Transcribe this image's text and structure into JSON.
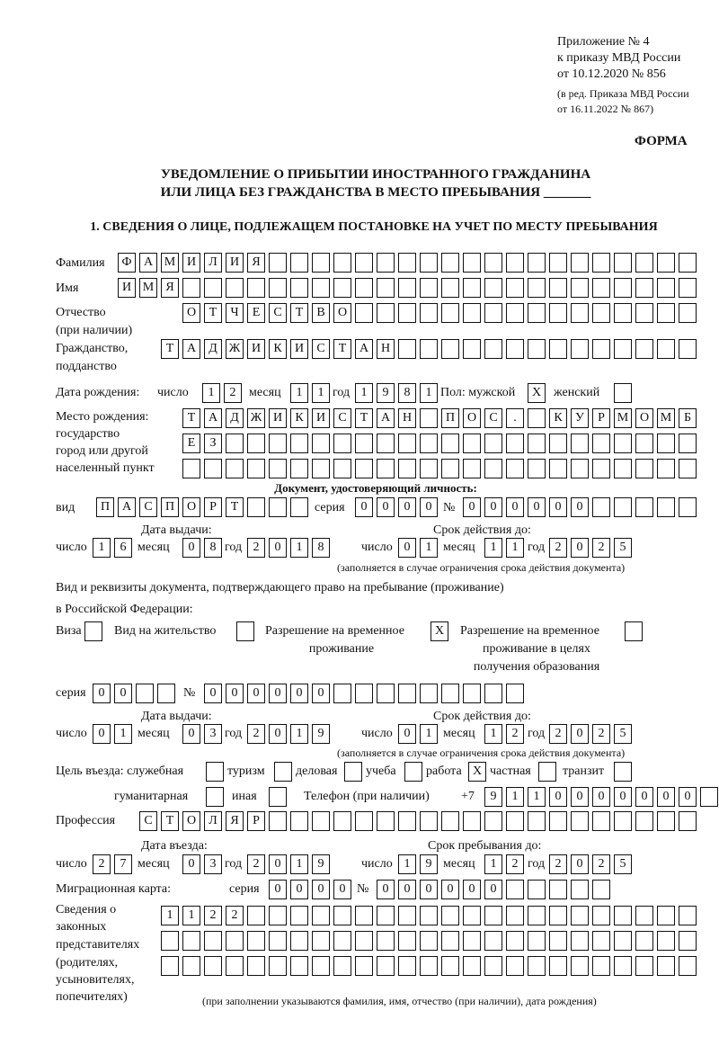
{
  "header": {
    "line1": "Приложение № 4",
    "line2": "к приказу МВД России",
    "line3": "от 10.12.2020 № 856",
    "line4": "(в ред. Приказа МВД России",
    "line5": "от 16.11.2022 № 867)",
    "form_label": "ФОРМА"
  },
  "title": {
    "line1": "УВЕДОМЛЕНИЕ О ПРИБЫТИИ ИНОСТРАННОГО ГРАЖДАНИНА",
    "line2": "ИЛИ ЛИЦА БЕЗ ГРАЖДАНСТВА В МЕСТО ПРЕБЫВАНИЯ _______"
  },
  "section1": {
    "heading": "1. СВЕДЕНИЯ О ЛИЦЕ, ПОДЛЕЖАЩЕМ ПОСТАНОВКЕ НА УЧЕТ ПО МЕСТУ ПРЕБЫВАНИЯ",
    "surname": {
      "label": "Фамилия",
      "cells": [
        "Ф",
        "А",
        "М",
        "И",
        "Л",
        "И",
        "Я",
        "",
        "",
        "",
        "",
        "",
        "",
        "",
        "",
        "",
        "",
        "",
        "",
        "",
        "",
        "",
        "",
        "",
        "",
        "",
        ""
      ]
    },
    "name": {
      "label": "Имя",
      "cells": [
        "И",
        "М",
        "Я",
        "",
        "",
        "",
        "",
        "",
        "",
        "",
        "",
        "",
        "",
        "",
        "",
        "",
        "",
        "",
        "",
        "",
        "",
        "",
        "",
        "",
        "",
        "",
        ""
      ]
    },
    "patronymic": {
      "label": "Отчество",
      "label2": "(при наличии)",
      "cells": [
        "О",
        "Т",
        "Ч",
        "Е",
        "С",
        "Т",
        "В",
        "О",
        "",
        "",
        "",
        "",
        "",
        "",
        "",
        "",
        "",
        "",
        "",
        "",
        "",
        "",
        "",
        ""
      ]
    },
    "citizenship": {
      "label": "Гражданство,",
      "label2": "подданство",
      "cells": [
        "Т",
        "А",
        "Д",
        "Ж",
        "И",
        "К",
        "И",
        "С",
        "Т",
        "А",
        "Н",
        "",
        "",
        "",
        "",
        "",
        "",
        "",
        "",
        "",
        "",
        "",
        "",
        "",
        ""
      ]
    },
    "birth_date": {
      "label": "Дата рождения:",
      "day_label": "число",
      "day": [
        "1",
        "2"
      ],
      "month_label": "месяц",
      "month": [
        "1",
        "1"
      ],
      "year_label": "год",
      "year": [
        "1",
        "9",
        "8",
        "1"
      ],
      "sex_label": "Пол: мужской",
      "male": [
        "X"
      ],
      "female_label": "женский",
      "female": [
        ""
      ]
    },
    "birth_place": {
      "label1": "Место рождения:",
      "label2": "государство",
      "label3": "город или другой",
      "label4": "населенный пункт",
      "row1": [
        "Т",
        "А",
        "Д",
        "Ж",
        "И",
        "К",
        "И",
        "С",
        "Т",
        "А",
        "Н",
        "",
        "П",
        "О",
        "С",
        ".",
        "",
        "К",
        "У",
        "Р",
        "М",
        "О",
        "М",
        "Б"
      ],
      "row2": [
        "Е",
        "З",
        "",
        "",
        "",
        "",
        "",
        "",
        "",
        "",
        "",
        "",
        "",
        "",
        "",
        "",
        "",
        "",
        "",
        "",
        "",
        "",
        "",
        ""
      ],
      "row3": [
        "",
        "",
        "",
        "",
        "",
        "",
        "",
        "",
        "",
        "",
        "",
        "",
        "",
        "",
        "",
        "",
        "",
        "",
        "",
        "",
        "",
        "",
        "",
        ""
      ]
    },
    "id_doc": {
      "heading": "Документ, удостоверяющий личность:",
      "kind_label": "вид",
      "kind": [
        "П",
        "А",
        "С",
        "П",
        "О",
        "Р",
        "Т",
        "",
        "",
        ""
      ],
      "series_label": "серия",
      "series": [
        "0",
        "0",
        "0",
        "0"
      ],
      "number_label": "№",
      "number": [
        "0",
        "0",
        "0",
        "0",
        "0",
        "0",
        "",
        "",
        "",
        "",
        ""
      ],
      "issue_label": "Дата выдачи:",
      "expiry_label": "Срок действия до:",
      "day_label": "число",
      "month_label": "месяц",
      "year_label": "год",
      "issue_day": [
        "1",
        "6"
      ],
      "issue_month": [
        "0",
        "8"
      ],
      "issue_year": [
        "2",
        "0",
        "1",
        "8"
      ],
      "exp_day": [
        "0",
        "1"
      ],
      "exp_month": [
        "1",
        "1"
      ],
      "exp_year": [
        "2",
        "0",
        "2",
        "5"
      ],
      "note": "(заполняется в случае ограничения срока действия документа)"
    },
    "stay_doc": {
      "intro1": "Вид и реквизиты документа, подтверждающего право на пребывание (проживание)",
      "intro2": "в Российской Федерации:",
      "visa_label": "Виза",
      "visa": [
        ""
      ],
      "residence_label": "Вид на жительство",
      "residence": [
        ""
      ],
      "trp_label1": "Разрешение на временное",
      "trp_label2": "проживание",
      "trp": [
        "X"
      ],
      "trp_edu_label1": "Разрешение на временное",
      "trp_edu_label2": "проживание в целях",
      "trp_edu_label3": "получения образования",
      "trp_edu": [
        ""
      ],
      "series_label": "серия",
      "series": [
        "0",
        "0",
        "",
        ""
      ],
      "number_label": "№",
      "number": [
        "0",
        "0",
        "0",
        "0",
        "0",
        "0",
        "",
        "",
        "",
        "",
        "",
        "",
        "",
        "",
        ""
      ],
      "issue_label": "Дата выдачи:",
      "expiry_label": "Срок действия до:",
      "issue_day": [
        "0",
        "1"
      ],
      "issue_month": [
        "0",
        "3"
      ],
      "issue_year": [
        "2",
        "0",
        "1",
        "9"
      ],
      "exp_day": [
        "0",
        "1"
      ],
      "exp_month": [
        "1",
        "2"
      ],
      "exp_year": [
        "2",
        "0",
        "2",
        "5"
      ],
      "note": "(заполняется в случае ограничения срока действия документа)"
    },
    "purpose": {
      "label": "Цель въезда: служебная",
      "official": [
        ""
      ],
      "tourism_label": "туризм",
      "tourism": [
        ""
      ],
      "business_label": "деловая",
      "business": [
        ""
      ],
      "study_label": "учеба",
      "study": [
        ""
      ],
      "work_label": "работа",
      "work": [
        "X"
      ],
      "private_label": "частная",
      "private": [
        ""
      ],
      "transit_label": "транзит",
      "transit": [
        ""
      ],
      "humanitarian_label": "гуманитарная",
      "humanitarian": [
        ""
      ],
      "other_label": "иная",
      "other": [
        ""
      ]
    },
    "phone": {
      "label": "Телефон (при наличии)",
      "prefix": "+7",
      "cells": [
        "9",
        "1",
        "1",
        "0",
        "0",
        "0",
        "0",
        "0",
        "0",
        "0",
        ""
      ]
    },
    "profession": {
      "label": "Профессия",
      "cells": [
        "С",
        "Т",
        "О",
        "Л",
        "Я",
        "Р",
        "",
        "",
        "",
        "",
        "",
        "",
        "",
        "",
        "",
        "",
        "",
        "",
        "",
        "",
        "",
        "",
        "",
        "",
        "",
        ""
      ]
    },
    "entry": {
      "entry_label": "Дата въезда:",
      "stay_label": "Срок пребывания до:",
      "day": [
        "2",
        "7"
      ],
      "month": [
        "0",
        "3"
      ],
      "year": [
        "2",
        "0",
        "1",
        "9"
      ],
      "stay_day": [
        "1",
        "9"
      ],
      "stay_month": [
        "1",
        "2"
      ],
      "stay_year": [
        "2",
        "0",
        "2",
        "5"
      ]
    },
    "migration_card": {
      "label": "Миграционная карта:",
      "series_label": "серия",
      "series": [
        "0",
        "0",
        "0",
        "0"
      ],
      "number_label": "№",
      "number": [
        "0",
        "0",
        "0",
        "0",
        "0",
        "0",
        "",
        "",
        "",
        "",
        ""
      ]
    },
    "representatives": {
      "label1": "Сведения о",
      "label2": "законных",
      "label3": "представителях",
      "label4": "(родителях,",
      "label5": "усыновителях,",
      "label6": "попечителях)",
      "row1": [
        "1",
        "1",
        "2",
        "2",
        "",
        "",
        "",
        "",
        "",
        "",
        "",
        "",
        "",
        "",
        "",
        "",
        "",
        "",
        "",
        "",
        "",
        "",
        "",
        "",
        ""
      ],
      "row2": [
        "",
        "",
        "",
        "",
        "",
        "",
        "",
        "",
        "",
        "",
        "",
        "",
        "",
        "",
        "",
        "",
        "",
        "",
        "",
        "",
        "",
        "",
        "",
        "",
        ""
      ],
      "row3": [
        "",
        "",
        "",
        "",
        "",
        "",
        "",
        "",
        "",
        "",
        "",
        "",
        "",
        "",
        "",
        "",
        "",
        "",
        "",
        "",
        "",
        "",
        "",
        "",
        ""
      ],
      "note": "(при заполнении указываются фамилия, имя, отчество (при наличии), дата рождения)"
    }
  }
}
